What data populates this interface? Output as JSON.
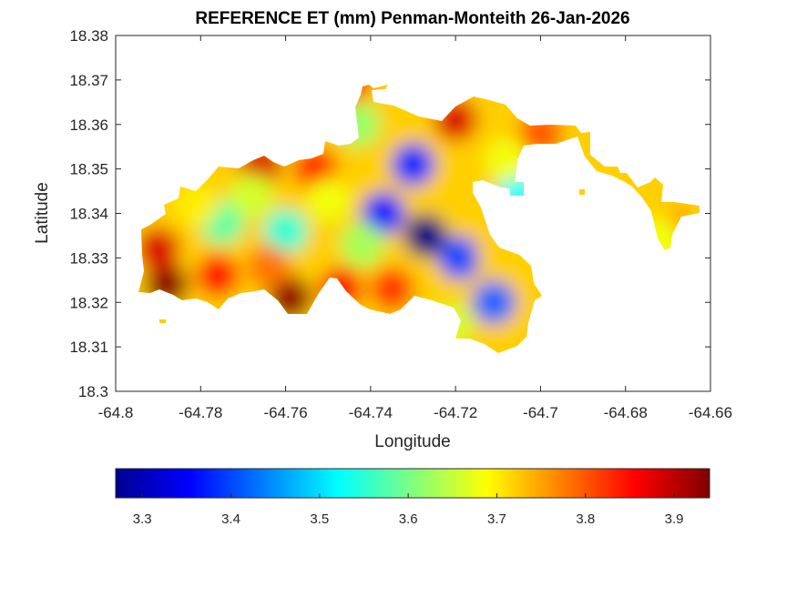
{
  "chart_data": {
    "type": "heatmap",
    "title": "REFERENCE ET (mm) Penman-Monteith 26-Jan-2026",
    "xlabel": "Longitude",
    "ylabel": "Latitude",
    "xlim": [
      -64.8,
      -64.66
    ],
    "ylim": [
      18.3,
      18.38
    ],
    "xticks": [
      -64.8,
      -64.78,
      -64.76,
      -64.74,
      -64.72,
      -64.7,
      -64.68,
      -64.66
    ],
    "yticks": [
      18.3,
      18.31,
      18.32,
      18.33,
      18.34,
      18.35,
      18.36,
      18.37,
      18.38
    ],
    "xtick_labels": [
      "-64.8",
      "-64.78",
      "-64.76",
      "-64.74",
      "-64.72",
      "-64.7",
      "-64.68",
      "-64.66"
    ],
    "ytick_labels": [
      "18.3",
      "18.31",
      "18.32",
      "18.33",
      "18.34",
      "18.35",
      "18.36",
      "18.37",
      "18.38"
    ],
    "grid": false,
    "colormap": "jet",
    "colorbar": {
      "location": "bottom",
      "range": [
        3.27,
        3.94
      ],
      "ticks": [
        3.3,
        3.4,
        3.5,
        3.6,
        3.7,
        3.8,
        3.9
      ],
      "tick_labels": [
        "3.3",
        "3.4",
        "3.5",
        "3.6",
        "3.7",
        "3.8",
        "3.9"
      ]
    },
    "surface_features": [
      {
        "lon": -64.788,
        "lat": 18.324,
        "value": 3.93
      },
      {
        "lon": -64.79,
        "lat": 18.332,
        "value": 3.88
      },
      {
        "lon": -64.776,
        "lat": 18.326,
        "value": 3.85
      },
      {
        "lon": -64.759,
        "lat": 18.321,
        "value": 3.93
      },
      {
        "lon": -64.747,
        "lat": 18.323,
        "value": 3.86
      },
      {
        "lon": -64.766,
        "lat": 18.351,
        "value": 3.88
      },
      {
        "lon": -64.753,
        "lat": 18.35,
        "value": 3.84
      },
      {
        "lon": -64.72,
        "lat": 18.361,
        "value": 3.88
      },
      {
        "lon": -64.745,
        "lat": 18.37,
        "value": 3.86
      },
      {
        "lon": -64.7,
        "lat": 18.358,
        "value": 3.85
      },
      {
        "lon": -64.735,
        "lat": 18.323,
        "value": 3.82
      },
      {
        "lon": -64.671,
        "lat": 18.338,
        "value": 3.85
      },
      {
        "lon": -64.727,
        "lat": 18.335,
        "value": 3.27
      },
      {
        "lon": -64.73,
        "lat": 18.351,
        "value": 3.38
      },
      {
        "lon": -64.711,
        "lat": 18.32,
        "value": 3.42
      },
      {
        "lon": -64.719,
        "lat": 18.33,
        "value": 3.4
      },
      {
        "lon": -64.737,
        "lat": 18.34,
        "value": 3.36
      },
      {
        "lon": -64.705,
        "lat": 18.345,
        "value": 3.52
      },
      {
        "lon": -64.76,
        "lat": 18.336,
        "value": 3.55
      },
      {
        "lon": -64.775,
        "lat": 18.338,
        "value": 3.58
      },
      {
        "lon": -64.768,
        "lat": 18.344,
        "value": 3.66
      },
      {
        "lon": -64.75,
        "lat": 18.343,
        "value": 3.68
      },
      {
        "lon": -64.742,
        "lat": 18.333,
        "value": 3.63
      },
      {
        "lon": -64.781,
        "lat": 18.342,
        "value": 3.7
      },
      {
        "lon": -64.743,
        "lat": 18.36,
        "value": 3.62
      },
      {
        "lon": -64.721,
        "lat": 18.315,
        "value": 3.66
      },
      {
        "lon": -64.71,
        "lat": 18.331,
        "value": 3.72
      },
      {
        "lon": -64.7,
        "lat": 18.358,
        "value": 3.8
      },
      {
        "lon": -64.708,
        "lat": 18.352,
        "value": 3.68
      },
      {
        "lon": -64.673,
        "lat": 18.34,
        "value": 3.72
      },
      {
        "lon": -64.672,
        "lat": 18.334,
        "value": 3.68
      },
      {
        "lon": -64.764,
        "lat": 18.328,
        "value": 3.78
      }
    ]
  }
}
